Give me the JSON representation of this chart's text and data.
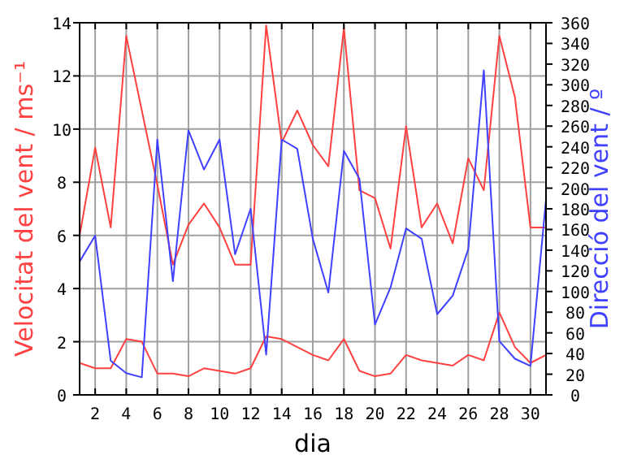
{
  "chart_data": {
    "type": "line",
    "xlabel": "dia",
    "ylabel": "Velocitat del vent / ms⁻¹",
    "y2label": "Direcció del vent / º",
    "x": [
      1,
      2,
      3,
      4,
      5,
      6,
      7,
      8,
      9,
      10,
      11,
      12,
      13,
      14,
      15,
      16,
      17,
      18,
      19,
      20,
      21,
      22,
      23,
      24,
      25,
      26,
      27,
      28,
      29,
      30,
      31
    ],
    "xlim": [
      1,
      31
    ],
    "xticks": [
      2,
      4,
      6,
      8,
      10,
      12,
      14,
      16,
      18,
      20,
      22,
      24,
      26,
      28,
      30
    ],
    "ylim": [
      0,
      14
    ],
    "yticks": [
      0,
      2,
      4,
      6,
      8,
      10,
      12,
      14
    ],
    "y2lim": [
      0,
      360
    ],
    "y2ticks": [
      0,
      20,
      40,
      60,
      80,
      100,
      120,
      140,
      160,
      180,
      200,
      220,
      240,
      260,
      280,
      300,
      320,
      340,
      360
    ],
    "grid": true,
    "series": [
      {
        "color": "#ff4040",
        "values": [
          6.0,
          9.3,
          6.3,
          13.5,
          10.7,
          7.9,
          4.9,
          6.4,
          7.2,
          6.3,
          4.9,
          4.9,
          13.9,
          9.5,
          10.7,
          9.4,
          8.6,
          13.8,
          7.7,
          7.4,
          5.5,
          10.1,
          6.3,
          7.2,
          5.7,
          8.9,
          7.7,
          13.5,
          11.2,
          6.3,
          6.3
        ]
      },
      {
        "color": "#ff4040",
        "values": [
          1.2,
          1.0,
          1.0,
          2.1,
          2.0,
          0.8,
          0.8,
          0.7,
          1.0,
          0.9,
          0.8,
          1.0,
          2.2,
          2.1,
          1.8,
          1.5,
          1.3,
          2.1,
          0.9,
          0.7,
          0.8,
          1.5,
          1.3,
          1.2,
          1.1,
          1.5,
          1.3,
          3.1,
          1.8,
          1.2,
          1.5
        ]
      },
      {
        "color": "#4040ff",
        "axis": "y2",
        "values": [
          129,
          154,
          33,
          21,
          17,
          247,
          110,
          256,
          218,
          247,
          136,
          180,
          39,
          247,
          238,
          151,
          99,
          236,
          209,
          68,
          104,
          161,
          151,
          78,
          96,
          141,
          314,
          52,
          35,
          28,
          189
        ]
      }
    ]
  }
}
